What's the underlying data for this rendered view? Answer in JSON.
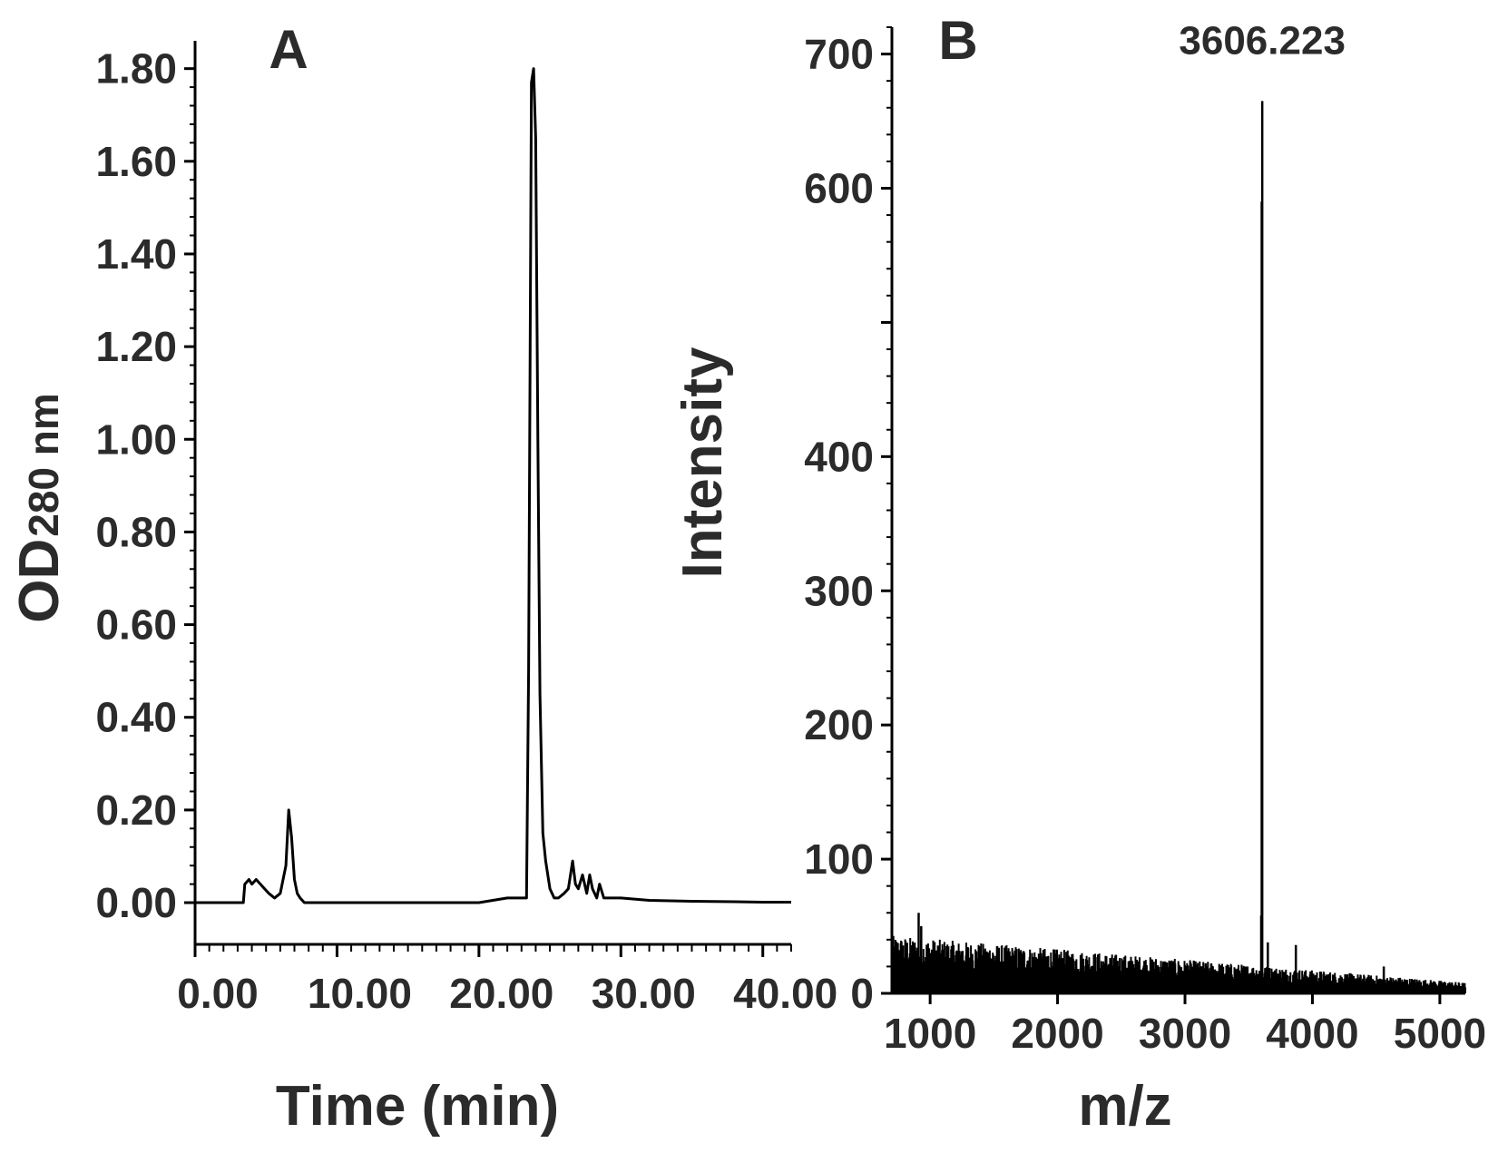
{
  "chart_data": [
    {
      "panel": "A",
      "type": "line",
      "xlabel": "Time (min)",
      "ylabel_main": "OD",
      "ylabel_sub": "280 nm",
      "xlim": [
        0,
        42
      ],
      "ylim": [
        -0.09,
        1.86
      ],
      "xticks": [
        {
          "value": 0,
          "label": "0.00"
        },
        {
          "value": 10,
          "label": "10.00"
        },
        {
          "value": 20,
          "label": "20.00"
        },
        {
          "value": 30,
          "label": "30.00"
        },
        {
          "value": 40,
          "label": "40.00"
        }
      ],
      "yticks": [
        {
          "value": 0.0,
          "label": "0.00"
        },
        {
          "value": 0.2,
          "label": "0.20"
        },
        {
          "value": 0.4,
          "label": "0.40"
        },
        {
          "value": 0.6,
          "label": "0.60"
        },
        {
          "value": 0.8,
          "label": "0.80"
        },
        {
          "value": 1.0,
          "label": "1.00"
        },
        {
          "value": 1.2,
          "label": "1.20"
        },
        {
          "value": 1.4,
          "label": "1.40"
        },
        {
          "value": 1.6,
          "label": "1.60"
        },
        {
          "value": 1.8,
          "label": "1.80"
        }
      ],
      "grid": false,
      "series": [
        {
          "color": "#000000",
          "x": [
            0,
            3.4,
            3.5,
            3.8,
            4.0,
            4.3,
            4.6,
            4.9,
            5.2,
            5.6,
            6.0,
            6.4,
            6.6,
            6.8,
            7.0,
            7.2,
            7.4,
            7.7,
            8.0,
            9.0,
            12.0,
            15.0,
            18.0,
            20.0,
            22.0,
            23.0,
            23.35,
            23.5,
            23.7,
            23.85,
            24.0,
            24.15,
            24.3,
            24.5,
            24.7,
            25.0,
            25.3,
            25.6,
            26.0,
            26.3,
            26.6,
            26.8,
            27.0,
            27.3,
            27.6,
            27.8,
            28.0,
            28.3,
            28.5,
            28.8,
            29.2,
            30.0,
            32.0,
            35.0,
            38.0,
            40.0,
            42.0
          ],
          "y": [
            0.0,
            0.0,
            0.04,
            0.05,
            0.04,
            0.05,
            0.04,
            0.03,
            0.02,
            0.01,
            0.02,
            0.08,
            0.2,
            0.14,
            0.05,
            0.02,
            0.01,
            0.0,
            0.0,
            0.0,
            0.0,
            0.0,
            0.0,
            0.0,
            0.01,
            0.01,
            0.01,
            0.5,
            1.77,
            1.8,
            1.65,
            1.0,
            0.45,
            0.15,
            0.09,
            0.03,
            0.01,
            0.01,
            0.02,
            0.03,
            0.09,
            0.04,
            0.03,
            0.06,
            0.02,
            0.06,
            0.03,
            0.01,
            0.04,
            0.01,
            0.01,
            0.01,
            0.005,
            0.003,
            0.002,
            0.001,
            0.001
          ]
        }
      ]
    },
    {
      "panel": "B",
      "type": "line",
      "xlabel": "m/z",
      "ylabel": "Intensity",
      "xlim": [
        700,
        5200
      ],
      "ylim": [
        0,
        720
      ],
      "xticks": [
        {
          "value": 1000,
          "label": "1000"
        },
        {
          "value": 2000,
          "label": "2000"
        },
        {
          "value": 3000,
          "label": "3000"
        },
        {
          "value": 4000,
          "label": "4000"
        },
        {
          "value": 5000,
          "label": "5000"
        }
      ],
      "yticks": [
        {
          "value": 0,
          "label": "0"
        },
        {
          "value": 100,
          "label": "100"
        },
        {
          "value": 200,
          "label": "200"
        },
        {
          "value": 300,
          "label": "300"
        },
        {
          "value": 400,
          "label": "400"
        },
        {
          "value": 500,
          "label": ""
        },
        {
          "value": 600,
          "label": "600"
        },
        {
          "value": 700,
          "label": "700"
        }
      ],
      "grid": false,
      "annotations": [
        {
          "text": "3606.223",
          "x": 3606.223,
          "y": 700
        }
      ],
      "peaks": [
        {
          "x": 3606.223,
          "y": 665
        },
        {
          "x": 3602,
          "y": 590
        },
        {
          "x": 3598,
          "y": 58
        },
        {
          "x": 910,
          "y": 60
        },
        {
          "x": 930,
          "y": 50
        },
        {
          "x": 3650,
          "y": 38
        },
        {
          "x": 3870,
          "y": 36
        },
        {
          "x": 4560,
          "y": 20
        }
      ],
      "noise": {
        "baseline_start": 18,
        "baseline_end": 3,
        "spread_start": 25,
        "spread_end": 5
      }
    }
  ],
  "panel_labels": {
    "a": "A",
    "b": "B"
  }
}
